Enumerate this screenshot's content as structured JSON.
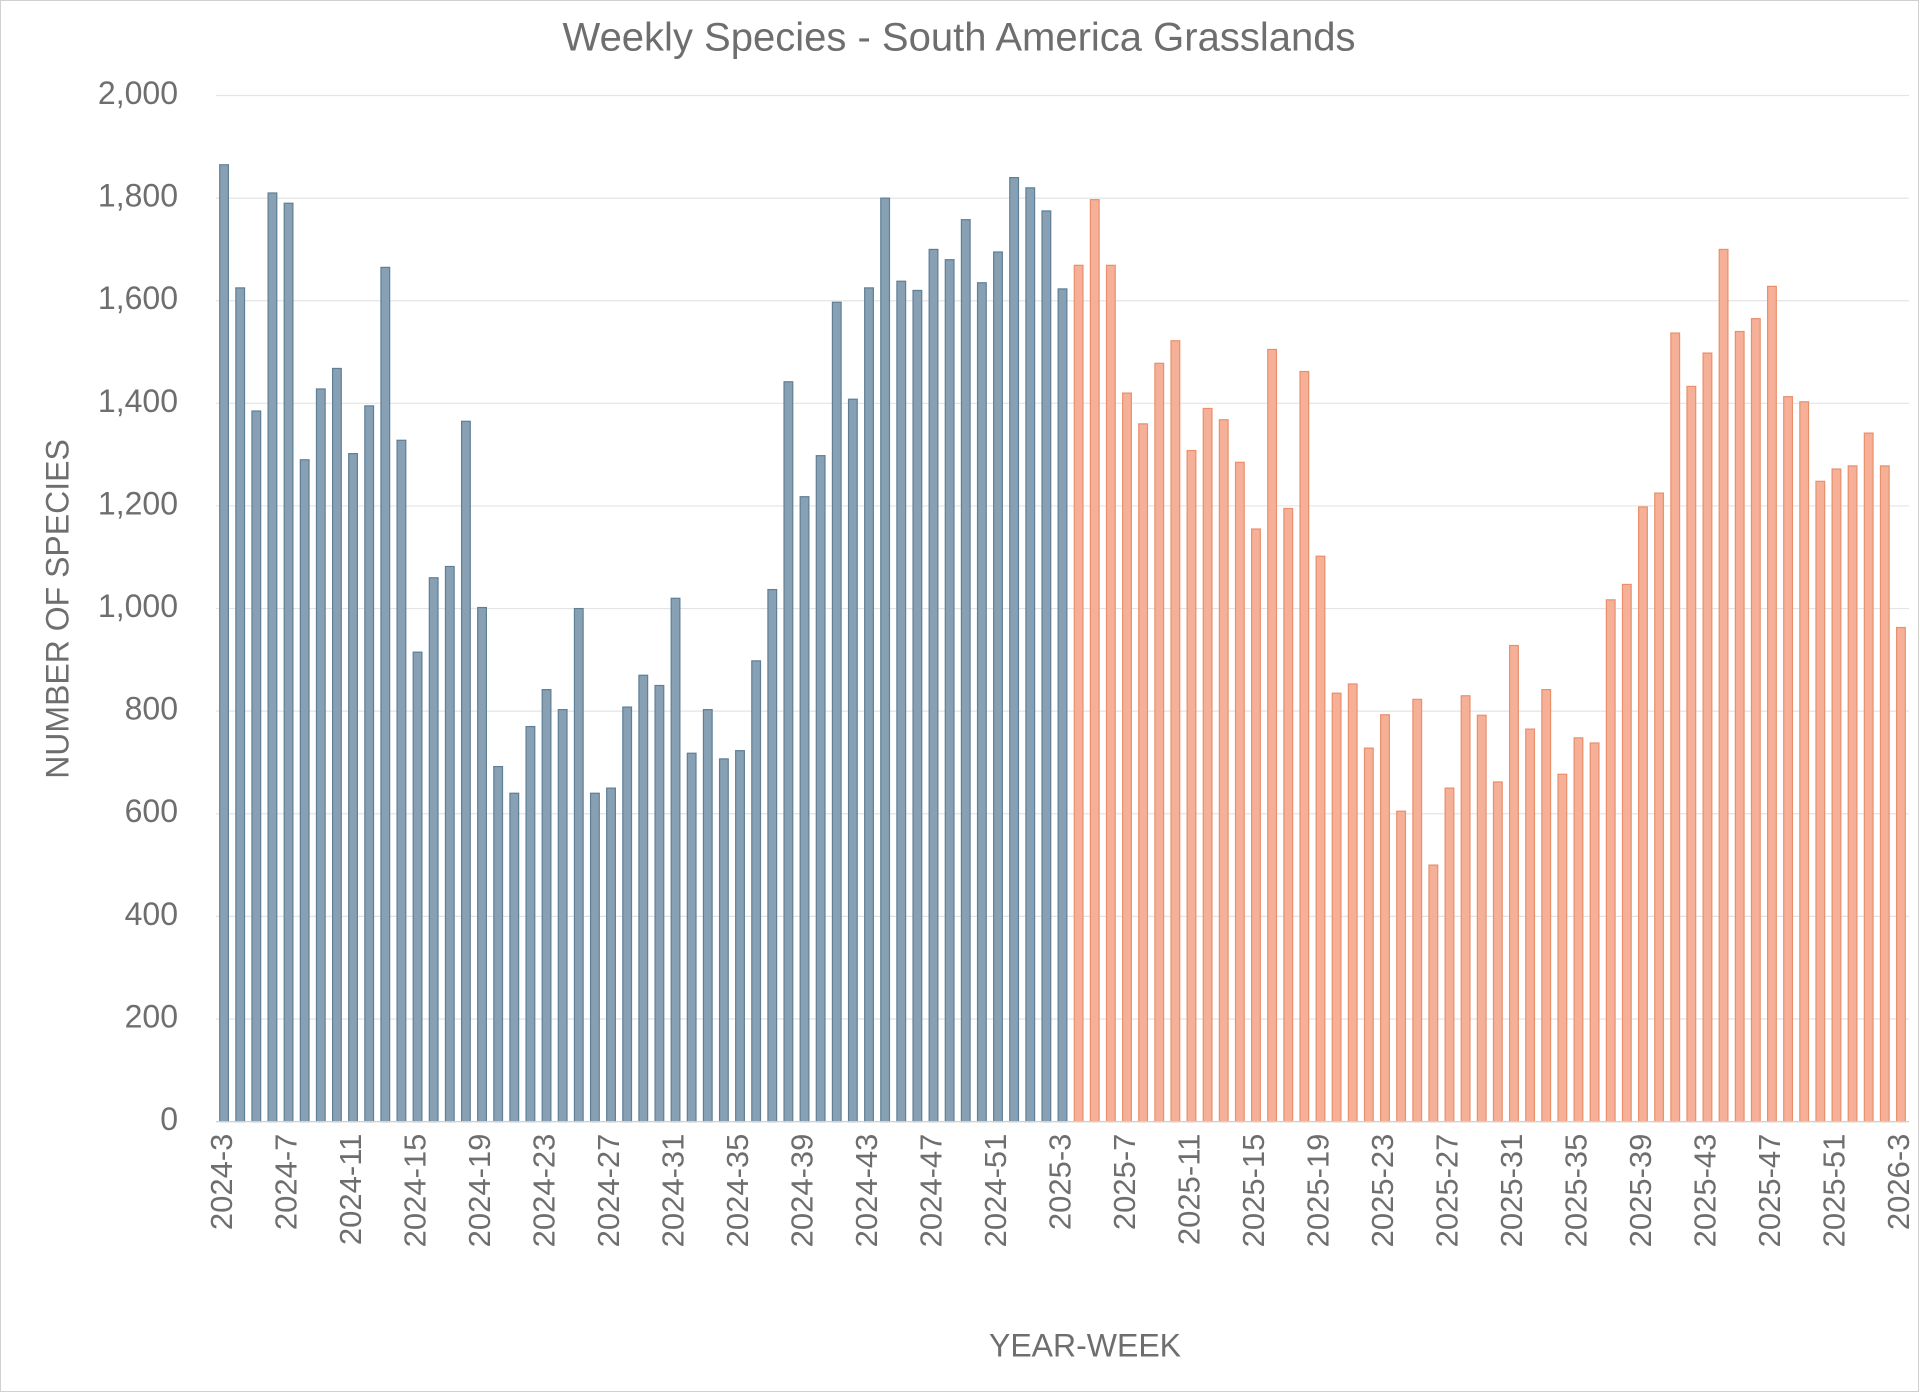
{
  "chart_data": {
    "type": "bar",
    "title": "Weekly Species - South America Grasslands",
    "x_label": "YEAR-WEEK",
    "y_label": "NUMBER OF SPECIES",
    "categories": [
      "2024-3",
      null,
      null,
      null,
      "2024-7",
      null,
      null,
      null,
      "2024-11",
      null,
      null,
      null,
      "2024-15",
      null,
      null,
      null,
      "2024-19",
      null,
      null,
      null,
      "2024-23",
      null,
      null,
      null,
      "2024-27",
      null,
      null,
      null,
      "2024-31",
      null,
      null,
      null,
      "2024-35",
      null,
      null,
      null,
      "2024-39",
      null,
      null,
      null,
      "2024-43",
      null,
      null,
      null,
      "2024-47",
      null,
      null,
      null,
      "2024-51",
      null,
      null,
      null,
      "2025-3",
      null,
      null,
      null,
      "2025-7",
      null,
      null,
      null,
      "2025-11",
      null,
      null,
      null,
      "2025-15",
      null,
      null,
      null,
      "2025-19",
      null,
      null,
      null,
      "2025-23",
      null,
      null,
      null,
      "2025-27",
      null,
      null,
      null,
      "2025-31",
      null,
      null,
      null,
      "2025-35",
      null,
      null,
      null,
      "2025-39",
      null,
      null,
      null,
      "2025-43",
      null,
      null,
      null,
      "2025-47",
      null,
      null,
      null,
      "2025-51",
      null,
      null,
      null,
      "2026-3"
    ],
    "series": [
      {
        "color": "#87a0b3",
        "stroke": "#5f7f96",
        "values": [
          1865,
          1625,
          1385,
          1810,
          1790,
          1290,
          1428,
          1468,
          1302,
          1395,
          1665,
          1328,
          915,
          1060,
          1082,
          1365,
          1002,
          692,
          640,
          770,
          842,
          803,
          1000,
          640,
          650,
          808,
          870,
          850,
          1020,
          718,
          803,
          707,
          723,
          898,
          1037,
          1442,
          1218,
          1298,
          1597,
          1408,
          1625,
          1800,
          1638,
          1620,
          1700,
          1680,
          1758,
          1635,
          1695,
          1840,
          1820,
          1775,
          1623,
          null,
          null,
          null,
          null,
          null,
          null,
          null,
          null,
          null,
          null,
          null,
          null,
          null,
          null,
          null,
          null,
          null,
          null,
          null,
          null,
          null,
          null,
          null,
          null,
          null,
          null,
          null,
          null,
          null,
          null,
          null,
          null,
          null,
          null,
          null,
          null,
          null,
          null,
          null,
          null,
          null,
          null,
          null,
          null,
          null,
          null,
          null,
          null,
          null,
          null,
          null,
          null
        ]
      },
      {
        "color": "#f6b097",
        "stroke": "#e98f6c",
        "values": [
          null,
          null,
          null,
          null,
          null,
          null,
          null,
          null,
          null,
          null,
          null,
          null,
          null,
          null,
          null,
          null,
          null,
          null,
          null,
          null,
          null,
          null,
          null,
          null,
          null,
          null,
          null,
          null,
          null,
          null,
          null,
          null,
          null,
          null,
          null,
          null,
          null,
          null,
          null,
          null,
          null,
          null,
          null,
          null,
          null,
          null,
          null,
          null,
          null,
          null,
          null,
          null,
          null,
          1669,
          1797,
          1669,
          1420,
          1360,
          1478,
          1522,
          1308,
          1390,
          1368,
          1285,
          1155,
          1505,
          1195,
          1462,
          1102,
          835,
          853,
          728,
          793,
          605,
          823,
          500,
          650,
          830,
          792,
          662,
          928,
          765,
          842,
          677,
          748,
          738,
          1017,
          1047,
          1198,
          1225,
          1537,
          1433,
          1498,
          1700,
          1540,
          1565,
          1628,
          1413,
          1403,
          1248,
          1272,
          1278,
          1342,
          1278,
          963
        ]
      }
    ],
    "ylim": [
      0,
      2000
    ],
    "yticks": [
      0,
      200,
      400,
      600,
      800,
      {
        "value": 1000,
        "label": "1,000"
      },
      {
        "value": 1200,
        "label": "1,200"
      },
      {
        "value": 1400,
        "label": "1,400"
      },
      {
        "value": 1600,
        "label": "1,600"
      },
      {
        "value": 1800,
        "label": "1,800"
      },
      {
        "value": 2000,
        "label": "2,000"
      }
    ],
    "grid": true
  }
}
